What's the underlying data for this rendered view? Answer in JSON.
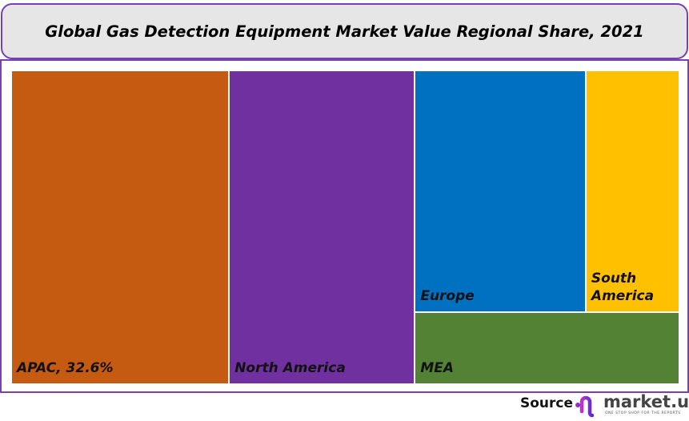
{
  "title": "Global Gas Detection Equipment Market Value Regional Share, 2021",
  "chart_data": {
    "type": "treemap",
    "title": "Global Gas Detection Equipment Market Value Regional Share, 2021",
    "unit": "%",
    "items": [
      {
        "name": "APAC",
        "label": "APAC, 32.6%",
        "value": 32.6,
        "color": "#c55a11"
      },
      {
        "name": "North America",
        "label": "North America",
        "value": 27.8,
        "color": "#7030a0"
      },
      {
        "name": "Europe",
        "label": "Europe",
        "value": 19.7,
        "color": "#0070c0"
      },
      {
        "name": "South America",
        "label": "South\nAmerica",
        "value": 10.8,
        "color": "#ffc000"
      },
      {
        "name": "MEA",
        "label": "MEA",
        "value": 9.1,
        "color": "#548235"
      }
    ]
  },
  "footer": {
    "source_label": "Source",
    "logo_text": "market.us",
    "logo_tagline": "ONE STOP SHOP FOR THE REPORTS"
  }
}
